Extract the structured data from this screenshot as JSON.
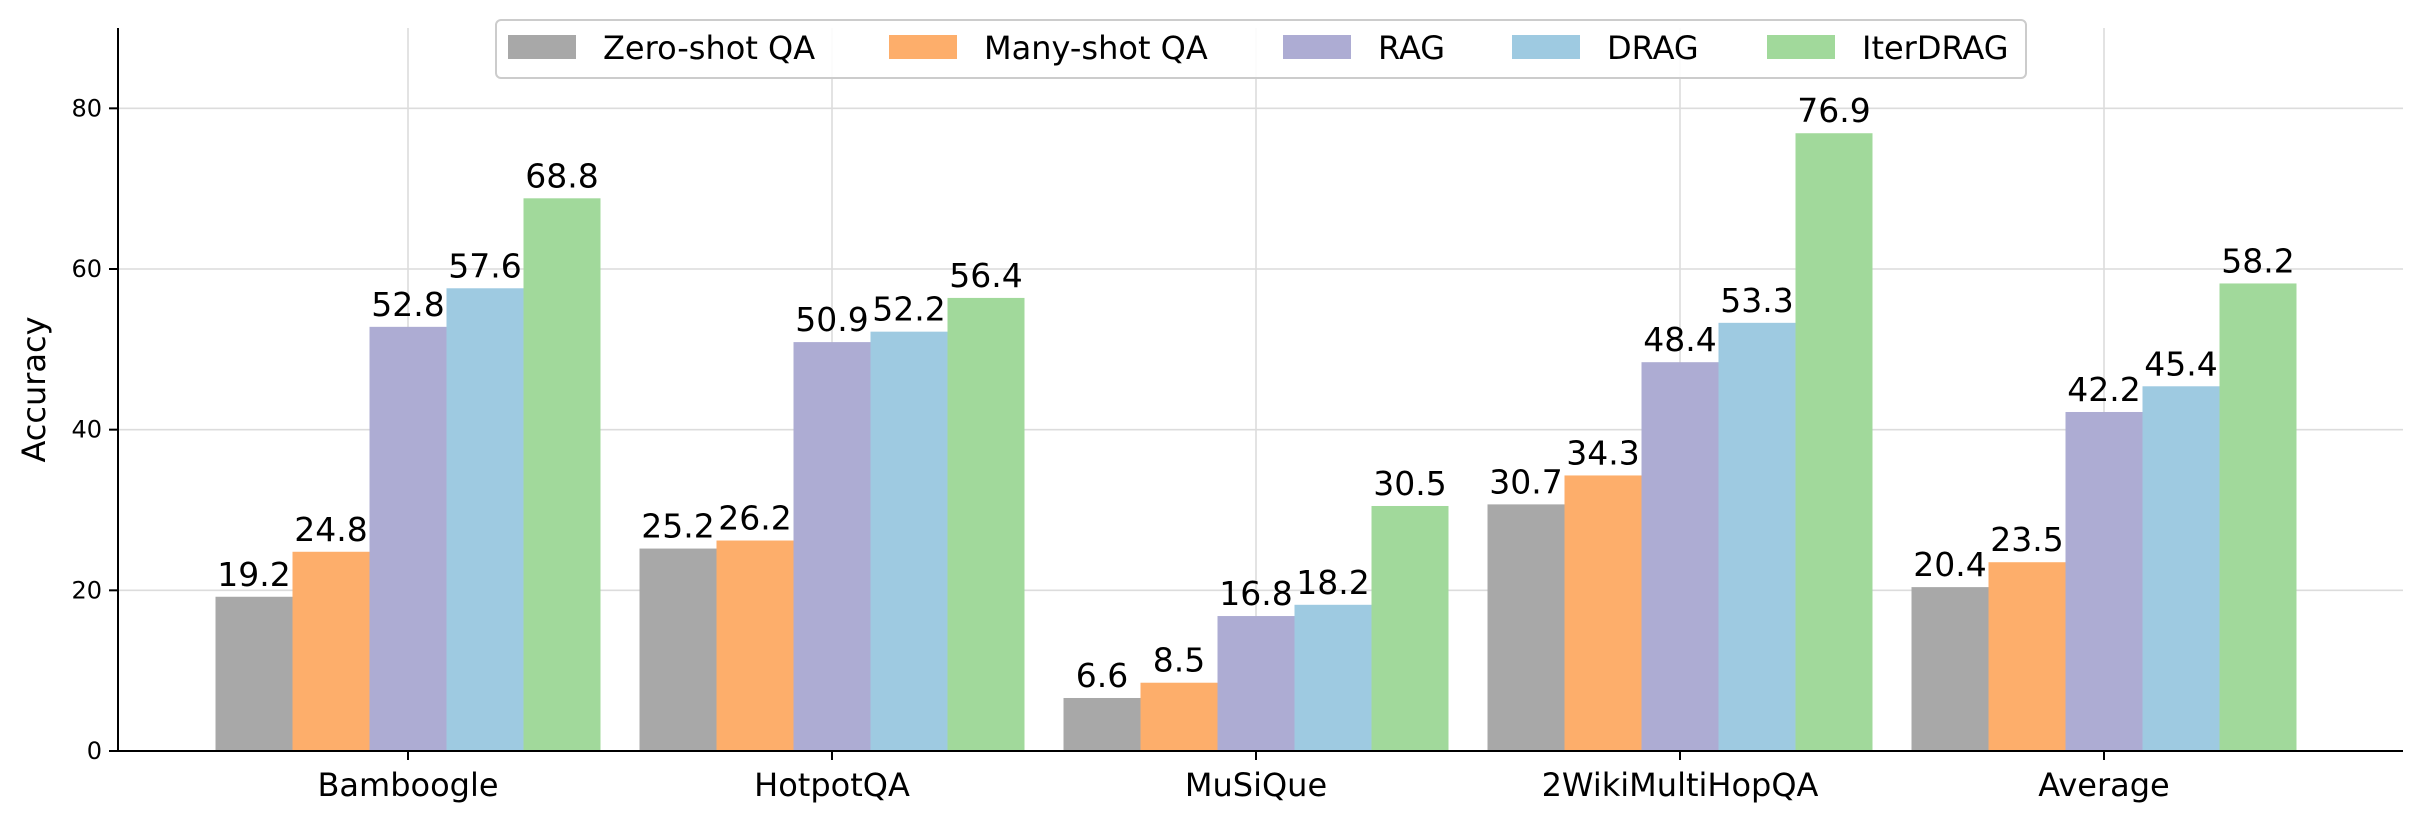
{
  "chart_data": {
    "type": "bar",
    "title": "",
    "xlabel": "",
    "ylabel": "Accuracy",
    "ylim": [
      0,
      90
    ],
    "yticks": [
      0,
      20,
      40,
      60,
      80
    ],
    "grid": true,
    "legend_position": "top-center",
    "categories": [
      "Bamboogle",
      "HotpotQA",
      "MuSiQue",
      "2WikiMultiHopQA",
      "Average"
    ],
    "series": [
      {
        "name": "Zero-shot QA",
        "color": "#a8a8a8",
        "values": [
          19.2,
          25.2,
          6.6,
          30.7,
          20.4
        ],
        "labels": [
          "19.2",
          "25.2",
          "6.6",
          "30.7",
          "20.4"
        ]
      },
      {
        "name": "Many-shot QA",
        "color": "#fdae6b",
        "values": [
          24.8,
          26.2,
          8.5,
          34.3,
          23.5
        ],
        "labels": [
          "24.8",
          "26.2",
          "8.5",
          "34.3",
          "23.5"
        ]
      },
      {
        "name": "RAG",
        "color": "#adacd3",
        "values": [
          52.8,
          50.9,
          16.8,
          48.4,
          42.2
        ],
        "labels": [
          "52.8",
          "50.9",
          "16.8",
          "48.4",
          "42.2"
        ]
      },
      {
        "name": "DRAG",
        "color": "#9ecae1",
        "values": [
          57.6,
          52.2,
          18.2,
          53.3,
          45.4
        ],
        "labels": [
          "57.6",
          "52.2",
          "18.2",
          "53.3",
          "45.4"
        ]
      },
      {
        "name": "IterDRAG",
        "color": "#a1d99b",
        "values": [
          68.8,
          56.4,
          30.5,
          76.9,
          58.2
        ],
        "labels": [
          "68.8",
          "56.4",
          "30.5",
          "76.9",
          "58.2"
        ]
      }
    ]
  }
}
